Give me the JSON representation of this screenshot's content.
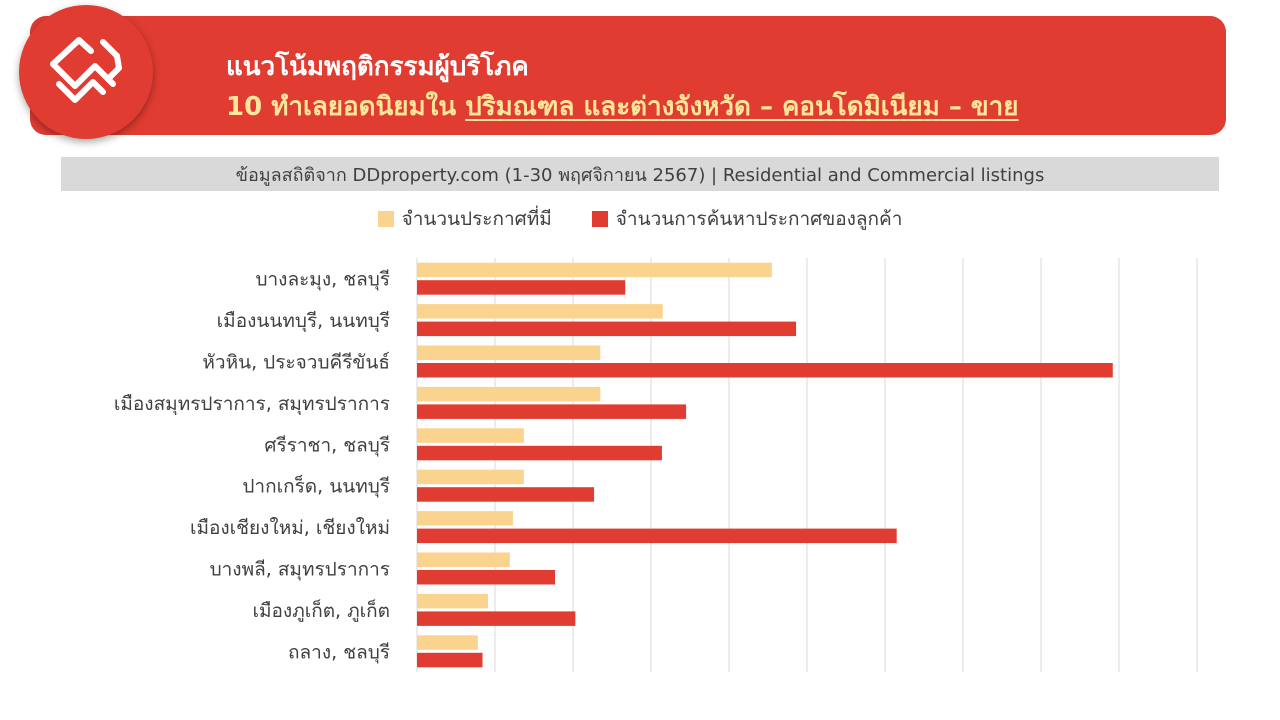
{
  "header": {
    "title_line1": "แนวโน้มพฤติกรรมผู้บริโภค",
    "title_line2_prefix": "10 ทำเลยอดนิยมใน ",
    "title_line2_underlined": "ปริมณฑล และต่างจังหวัด – คอนโดมิเนียม – ขาย"
  },
  "source_note": "ข้อมูลสถิติจาก DDproperty.com (1-30 พฤศจิกายน 2567) | Residential and Commercial listings",
  "colors": {
    "brand_red": "#e03c31",
    "listings": "#fad48f",
    "searches": "#e03c31",
    "gridline": "#d9d9d9"
  },
  "chart_data": {
    "type": "bar",
    "orientation": "horizontal",
    "categories": [
      "บางละมุง, ชลบุรี",
      "เมืองนนทบุรี, นนทบุรี",
      "หัวหิน, ประจวบคีรีขันธ์",
      "เมืองสมุทรปราการ, สมุทรปราการ",
      "ศรีราชา, ชลบุรี",
      "ปากเกร็ด, นนทบุรี",
      "เมืองเชียงใหม่, เชียงใหม่",
      "บางพลี, สมุทรปราการ",
      "เมืองภูเก็ต, ภูเก็ต",
      "ถลาง, ชลบุรี"
    ],
    "series": [
      {
        "name": "จำนวนประกาศที่มี",
        "values": [
          45.5,
          31.5,
          23.5,
          23.5,
          13.7,
          13.7,
          12.3,
          11.9,
          9.1,
          7.8
        ]
      },
      {
        "name": "จำนวนการค้นหาประกาศของลูกค้า",
        "values": [
          26.7,
          48.6,
          89.2,
          34.5,
          31.4,
          22.7,
          61.5,
          17.7,
          20.3,
          8.4
        ]
      }
    ],
    "xlim": [
      0,
      100
    ],
    "x_gridlines": 10,
    "show_tick_labels": false,
    "grid": true,
    "legend_position": "top"
  }
}
